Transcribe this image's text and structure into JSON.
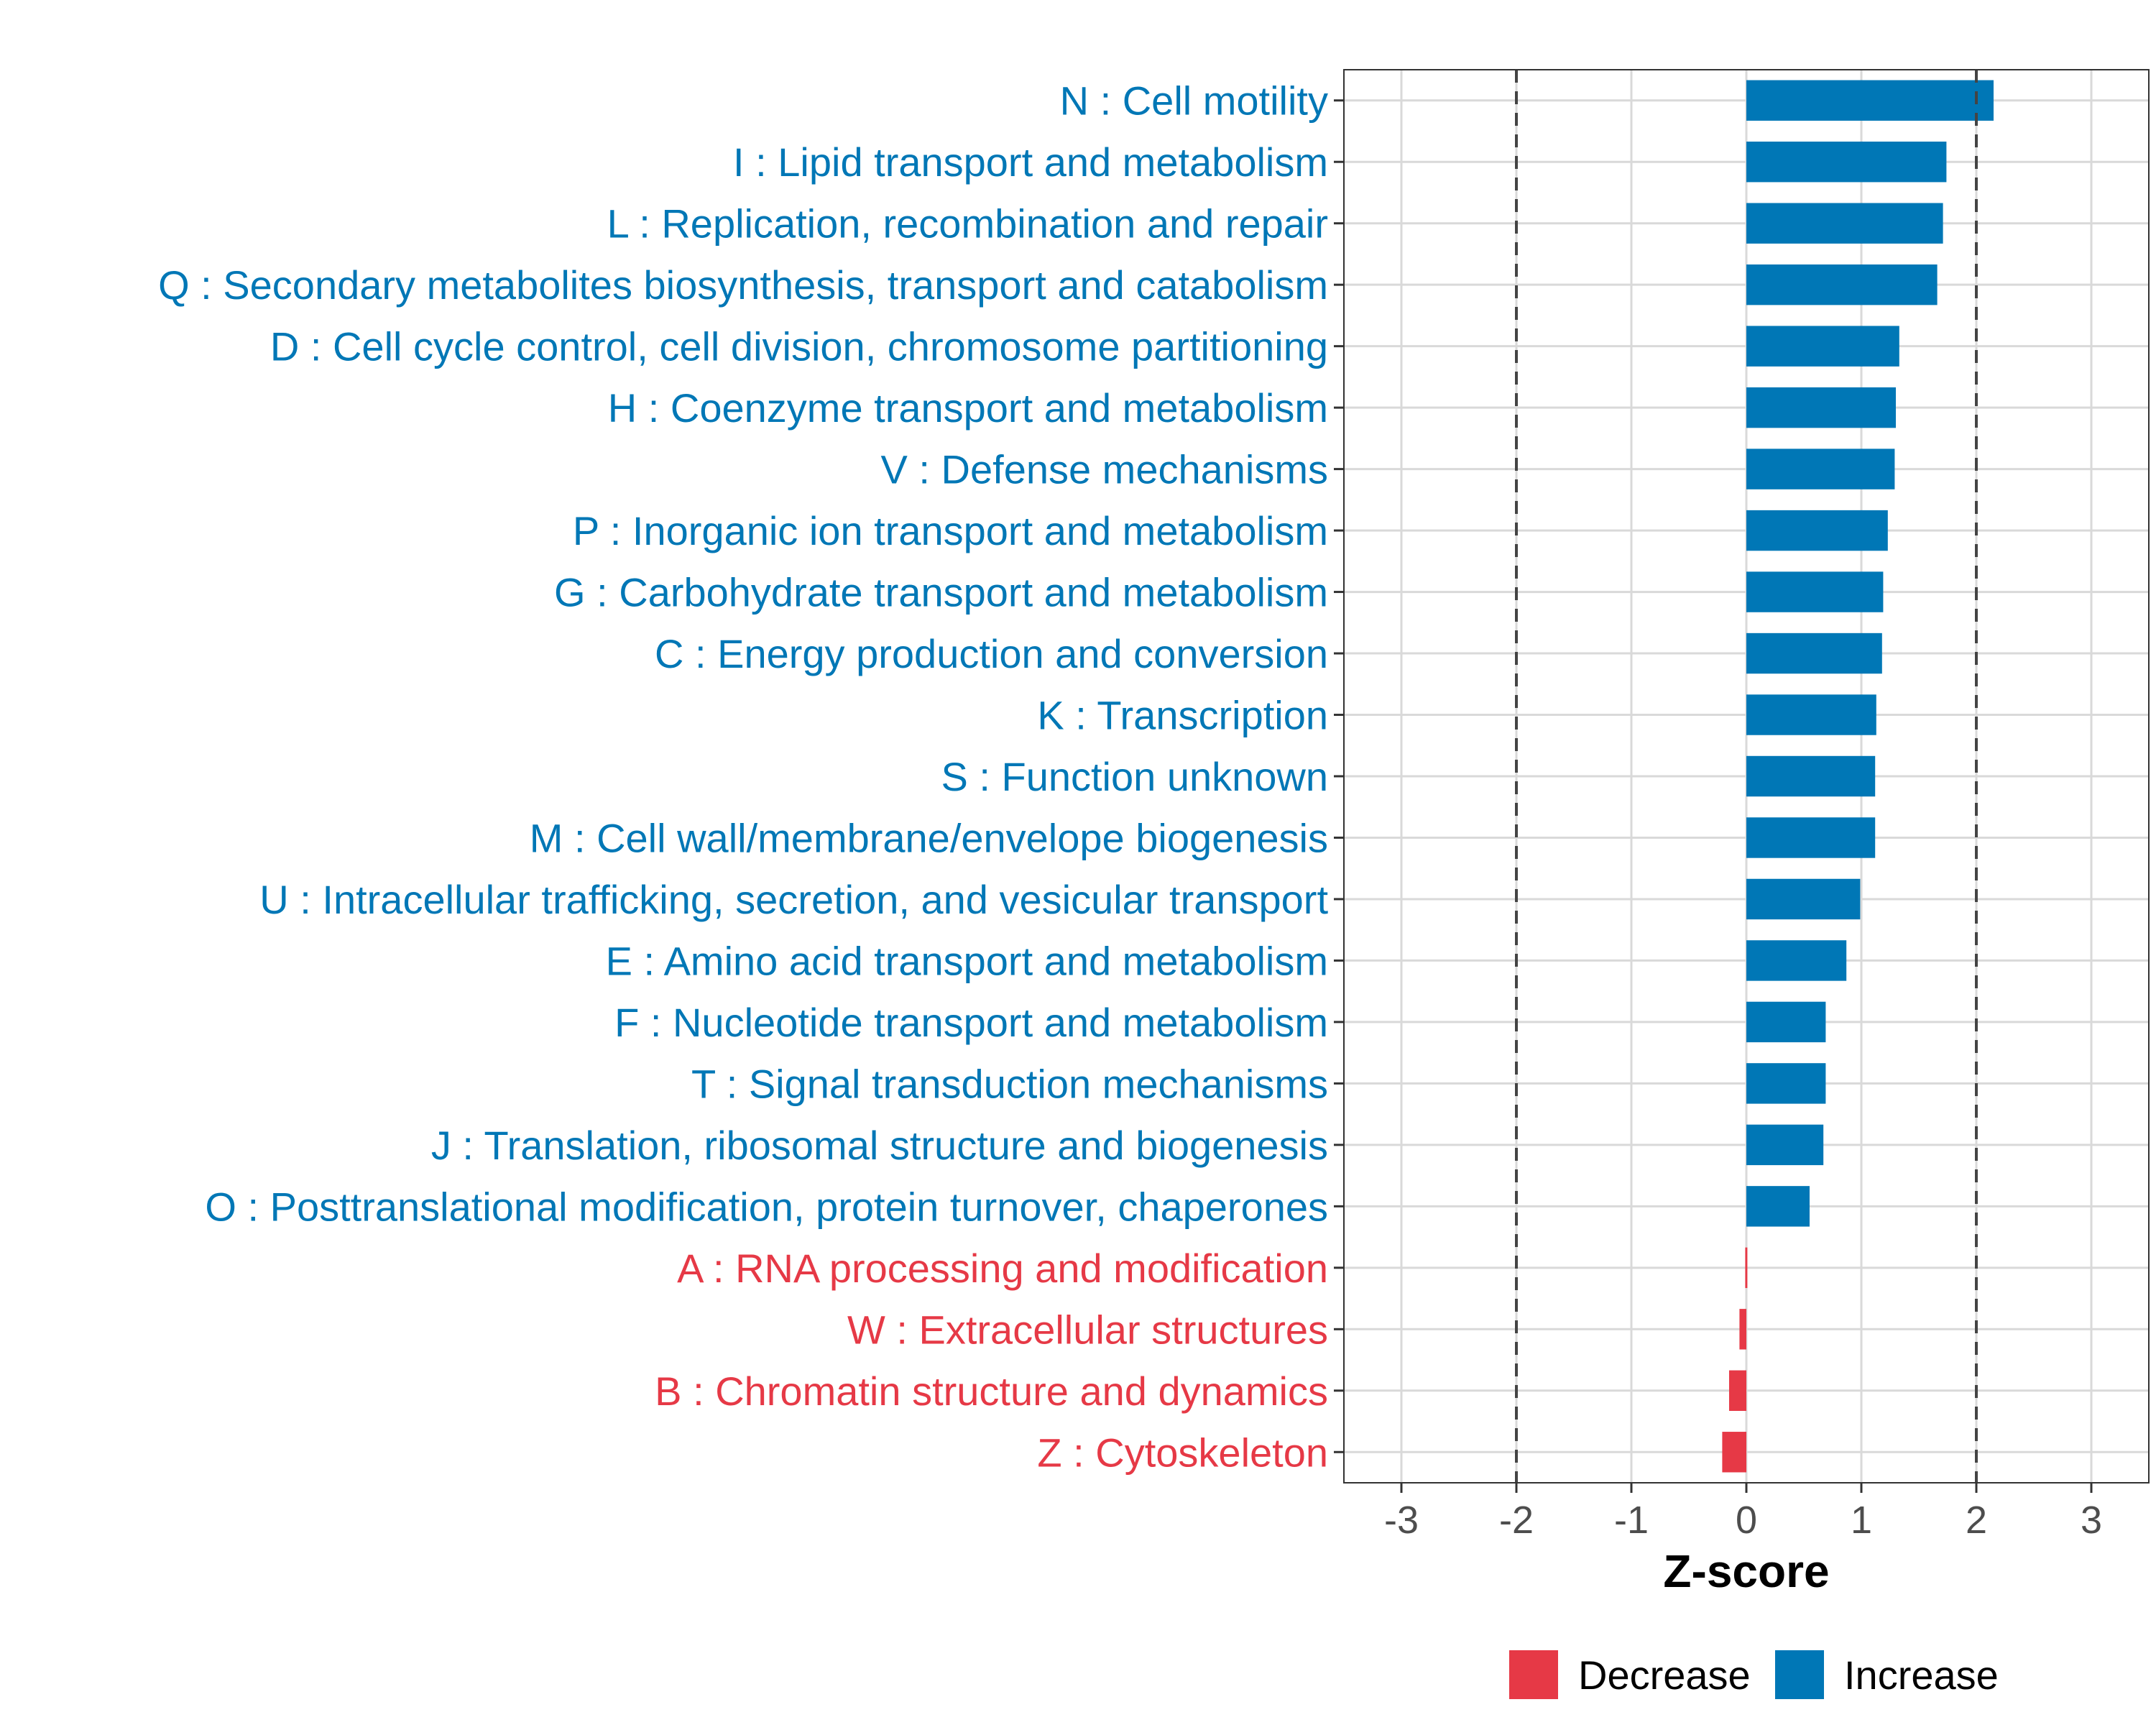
{
  "chart_data": {
    "type": "bar",
    "orientation": "horizontal",
    "xlabel": "Z-score",
    "xlim": [
      -3.5,
      3.5
    ],
    "xticks": [
      -3,
      -2,
      -1,
      0,
      1,
      2,
      3
    ],
    "grid": true,
    "reference_lines": [
      -2,
      2
    ],
    "legend_position": "bottom",
    "legend": [
      {
        "label": "Decrease",
        "color": "#e63946"
      },
      {
        "label": "Increase",
        "color": "#0077b6"
      }
    ],
    "colors": {
      "Increase": "#0077b6",
      "Decrease": "#e63946"
    },
    "categories": [
      {
        "label": "N : Cell motility",
        "value": 2.15,
        "direction": "Increase"
      },
      {
        "label": "I : Lipid transport and metabolism",
        "value": 1.74,
        "direction": "Increase"
      },
      {
        "label": "L : Replication, recombination and repair",
        "value": 1.71,
        "direction": "Increase"
      },
      {
        "label": "Q : Secondary metabolites biosynthesis, transport and catabolism",
        "value": 1.66,
        "direction": "Increase"
      },
      {
        "label": "D : Cell cycle control, cell division, chromosome partitioning",
        "value": 1.33,
        "direction": "Increase"
      },
      {
        "label": "H : Coenzyme transport and metabolism",
        "value": 1.3,
        "direction": "Increase"
      },
      {
        "label": "V : Defense mechanisms",
        "value": 1.29,
        "direction": "Increase"
      },
      {
        "label": "P : Inorganic ion transport and metabolism",
        "value": 1.23,
        "direction": "Increase"
      },
      {
        "label": "G : Carbohydrate transport and metabolism",
        "value": 1.19,
        "direction": "Increase"
      },
      {
        "label": "C : Energy production and conversion",
        "value": 1.18,
        "direction": "Increase"
      },
      {
        "label": "K : Transcription",
        "value": 1.13,
        "direction": "Increase"
      },
      {
        "label": "S : Function unknown",
        "value": 1.12,
        "direction": "Increase"
      },
      {
        "label": "M : Cell wall/membrane/envelope biogenesis",
        "value": 1.12,
        "direction": "Increase"
      },
      {
        "label": "U : Intracellular trafficking, secretion, and vesicular transport",
        "value": 0.99,
        "direction": "Increase"
      },
      {
        "label": "E : Amino acid transport and metabolism",
        "value": 0.87,
        "direction": "Increase"
      },
      {
        "label": "F : Nucleotide transport and metabolism",
        "value": 0.69,
        "direction": "Increase"
      },
      {
        "label": "T : Signal transduction mechanisms",
        "value": 0.69,
        "direction": "Increase"
      },
      {
        "label": "J : Translation, ribosomal structure and biogenesis",
        "value": 0.67,
        "direction": "Increase"
      },
      {
        "label": "O : Posttranslational modification, protein turnover, chaperones",
        "value": 0.55,
        "direction": "Increase"
      },
      {
        "label": "A : RNA processing and modification",
        "value": -0.01,
        "direction": "Decrease"
      },
      {
        "label": "W : Extracellular structures",
        "value": -0.06,
        "direction": "Decrease"
      },
      {
        "label": "B : Chromatin structure and dynamics",
        "value": -0.15,
        "direction": "Decrease"
      },
      {
        "label": "Z : Cytoskeleton",
        "value": -0.21,
        "direction": "Decrease"
      }
    ]
  }
}
